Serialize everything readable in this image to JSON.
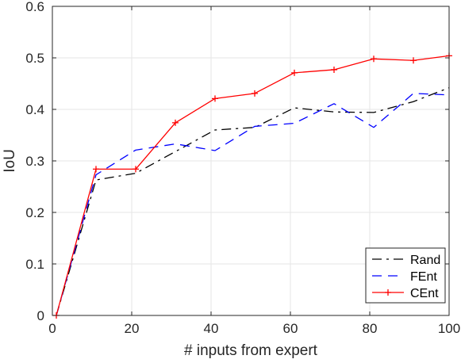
{
  "chart_data": {
    "type": "line",
    "xlabel": "# inputs from expert",
    "ylabel": "IoU",
    "xlim": [
      0,
      100
    ],
    "ylim": [
      0,
      0.6
    ],
    "x_ticks": [
      0,
      20,
      40,
      60,
      80,
      100
    ],
    "y_ticks": [
      0,
      0.1,
      0.2,
      0.3,
      0.4,
      0.5,
      0.6
    ],
    "grid": true,
    "legend_position": "bottom-right",
    "x": [
      1,
      11,
      21,
      31,
      41,
      51,
      61,
      71,
      81,
      91,
      100
    ],
    "series": [
      {
        "name": "Rand",
        "color": "#000000",
        "style": "dashdot",
        "marker": "none",
        "values": [
          0,
          0.263,
          0.276,
          0.318,
          0.36,
          0.365,
          0.403,
          0.395,
          0.394,
          0.415,
          0.442
        ]
      },
      {
        "name": "FEnt",
        "color": "#0000ff",
        "style": "dashed",
        "marker": "none",
        "values": [
          0,
          0.273,
          0.321,
          0.333,
          0.32,
          0.367,
          0.373,
          0.411,
          0.365,
          0.431,
          0.428
        ]
      },
      {
        "name": "CEnt",
        "color": "#ff0000",
        "style": "solid",
        "marker": "plus",
        "values": [
          0,
          0.284,
          0.284,
          0.374,
          0.421,
          0.431,
          0.471,
          0.477,
          0.498,
          0.495,
          0.504
        ]
      }
    ]
  }
}
